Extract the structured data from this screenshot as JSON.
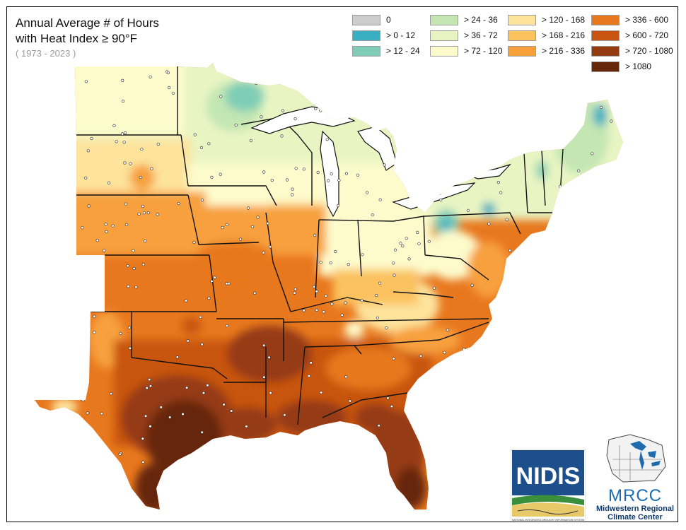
{
  "map": {
    "title_line1": "Annual Average # of Hours",
    "title_line2": "with Heat Index ≥ 90°F",
    "period": "( 1973 - 2023 )"
  },
  "legend": [
    {
      "label": "0",
      "color": "#cccccc"
    },
    {
      "label": "> 0 - 12",
      "color": "#3aaec2"
    },
    {
      "label": "> 12 - 24",
      "color": "#7fcdb6"
    },
    {
      "label": "> 24 - 36",
      "color": "#c3e6b3"
    },
    {
      "label": "> 36 - 72",
      "color": "#e8f5c2"
    },
    {
      "label": "> 72 - 120",
      "color": "#fdfbcc"
    },
    {
      "label": "> 120 - 168",
      "color": "#fde39c"
    },
    {
      "label": "> 168 - 216",
      "color": "#fbc25e"
    },
    {
      "label": "> 216 - 336",
      "color": "#f7a03c"
    },
    {
      "label": "> 336 - 600",
      "color": "#e8781e"
    },
    {
      "label": "> 600 - 720",
      "color": "#c85410"
    },
    {
      "label": "> 720 - 1080",
      "color": "#953b12"
    },
    {
      "label": "> 1080",
      "color": "#66260a"
    }
  ],
  "logos": {
    "nidis": "NIDIS",
    "nidis_caption": "NATIONAL INTEGRATED DROUGHT INFORMATION SYSTEM",
    "mrcc": "MRCC",
    "mrcc_line1": "Midwestern Regional",
    "mrcc_line2": "Climate Center"
  }
}
